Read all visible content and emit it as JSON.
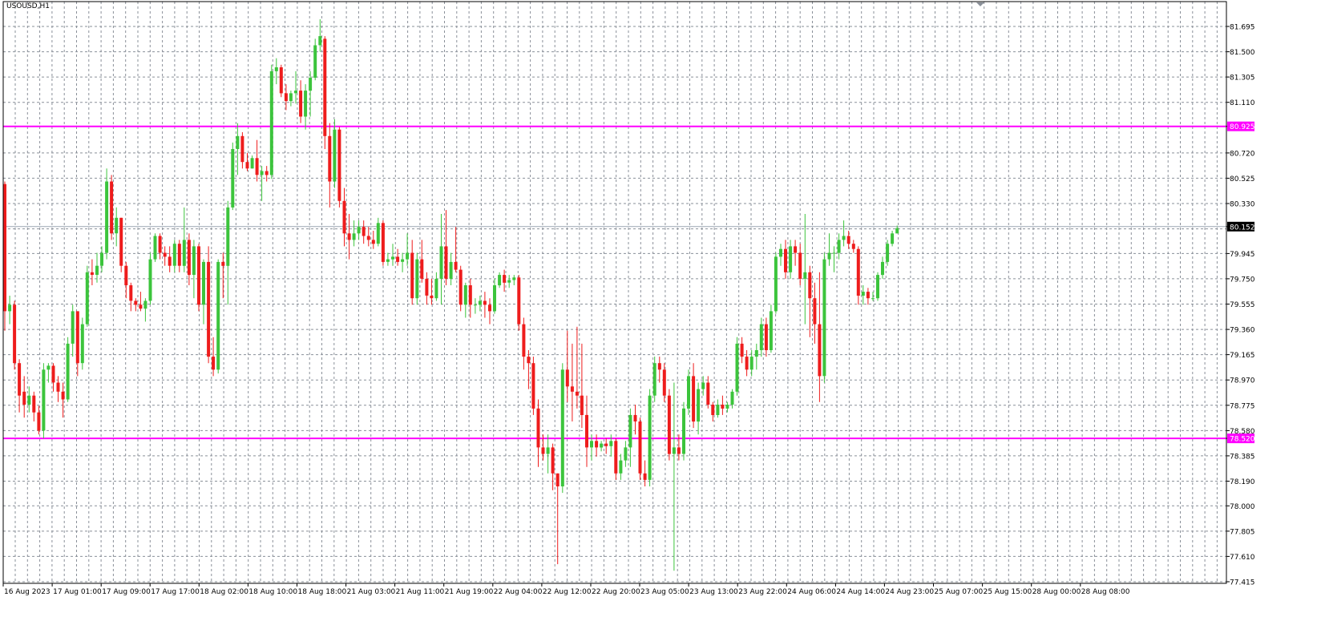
{
  "chart_data": {
    "type": "candlestick",
    "symbol": "USOUSD,H1",
    "ylim": [
      77.415,
      81.79
    ],
    "y_ticks": [
      "81.695",
      "81.500",
      "81.305",
      "81.110",
      "80.925",
      "80.720",
      "80.525",
      "80.330",
      "80.152",
      "79.945",
      "79.750",
      "79.555",
      "79.360",
      "79.165",
      "78.970",
      "78.775",
      "78.580",
      "78.520",
      "78.385",
      "78.190",
      "78.000",
      "77.805",
      "77.610",
      "77.415"
    ],
    "x_ticks": [
      "16 Aug 2023",
      "17 Aug 01:00",
      "17 Aug 09:00",
      "17 Aug 17:00",
      "18 Aug 02:00",
      "18 Aug 10:00",
      "18 Aug 18:00",
      "21 Aug 03:00",
      "21 Aug 11:00",
      "21 Aug 19:00",
      "22 Aug 04:00",
      "22 Aug 12:00",
      "22 Aug 20:00",
      "23 Aug 05:00",
      "23 Aug 13:00",
      "23 Aug 22:00",
      "24 Aug 06:00",
      "24 Aug 14:00",
      "24 Aug 23:00",
      "25 Aug 07:00",
      "25 Aug 15:00",
      "28 Aug 00:00",
      "28 Aug 08:00"
    ],
    "horizontal_lines": [
      {
        "value": 80.925,
        "label": "80.925",
        "color": "#ff00ff"
      },
      {
        "value": 78.52,
        "label": "78.520",
        "color": "#ff00ff"
      }
    ],
    "current_price": {
      "value": 80.152,
      "label": "80.152",
      "color": "#9aa6b2"
    },
    "bull_color": "#3cc43c",
    "bear_color": "#ee1c1c",
    "grid": true,
    "candles": [
      [
        80.48,
        80.5,
        79.35,
        79.5
      ],
      [
        79.5,
        79.62,
        79.4,
        79.55
      ],
      [
        79.55,
        79.58,
        79.05,
        79.1
      ],
      [
        79.1,
        79.13,
        78.72,
        78.85
      ],
      [
        78.88,
        79.0,
        78.68,
        78.78
      ],
      [
        78.78,
        78.92,
        78.72,
        78.85
      ],
      [
        78.85,
        78.88,
        78.65,
        78.72
      ],
      [
        78.72,
        78.77,
        78.55,
        78.58
      ],
      [
        78.58,
        79.1,
        78.52,
        79.05
      ],
      [
        79.05,
        79.1,
        78.95,
        79.08
      ],
      [
        79.08,
        79.1,
        78.88,
        78.95
      ],
      [
        78.95,
        79.0,
        78.8,
        78.88
      ],
      [
        78.88,
        78.95,
        78.68,
        78.82
      ],
      [
        78.82,
        79.3,
        78.8,
        79.25
      ],
      [
        79.25,
        79.55,
        79.15,
        79.5
      ],
      [
        79.5,
        79.5,
        79.0,
        79.1
      ],
      [
        79.1,
        79.45,
        79.05,
        79.4
      ],
      [
        79.4,
        79.85,
        79.38,
        79.8
      ],
      [
        79.8,
        79.9,
        79.7,
        79.78
      ],
      [
        79.78,
        79.95,
        79.72,
        79.85
      ],
      [
        79.85,
        80.0,
        79.8,
        79.95
      ],
      [
        79.95,
        80.6,
        79.9,
        80.5
      ],
      [
        80.5,
        80.55,
        80.05,
        80.1
      ],
      [
        80.1,
        80.3,
        80.0,
        80.22
      ],
      [
        80.22,
        80.22,
        79.8,
        79.85
      ],
      [
        79.85,
        79.88,
        79.6,
        79.7
      ],
      [
        79.7,
        79.72,
        79.5,
        79.58
      ],
      [
        79.58,
        79.6,
        79.5,
        79.55
      ],
      [
        79.55,
        79.65,
        79.5,
        79.52
      ],
      [
        79.52,
        79.6,
        79.42,
        79.58
      ],
      [
        79.58,
        79.95,
        79.55,
        79.9
      ],
      [
        79.9,
        80.1,
        79.88,
        80.08
      ],
      [
        80.08,
        80.1,
        79.9,
        79.95
      ],
      [
        79.95,
        80.0,
        79.85,
        79.92
      ],
      [
        79.92,
        80.0,
        79.8,
        79.85
      ],
      [
        79.85,
        80.05,
        79.8,
        80.02
      ],
      [
        80.02,
        80.05,
        79.8,
        79.85
      ],
      [
        79.85,
        80.3,
        79.8,
        80.05
      ],
      [
        80.05,
        80.1,
        79.7,
        79.78
      ],
      [
        79.78,
        80.05,
        79.6,
        80.0
      ],
      [
        80.0,
        80.02,
        79.5,
        79.55
      ],
      [
        79.55,
        79.9,
        79.4,
        79.88
      ],
      [
        79.88,
        80.0,
        79.1,
        79.15
      ],
      [
        79.15,
        79.3,
        79.0,
        79.05
      ],
      [
        79.05,
        79.9,
        79.02,
        79.88
      ],
      [
        79.88,
        79.95,
        79.6,
        79.85
      ],
      [
        79.85,
        80.35,
        79.55,
        80.3
      ],
      [
        80.3,
        80.8,
        80.28,
        80.75
      ],
      [
        80.75,
        80.95,
        80.55,
        80.85
      ],
      [
        80.85,
        80.88,
        80.6,
        80.65
      ],
      [
        80.65,
        80.72,
        80.58,
        80.6
      ],
      [
        80.6,
        80.7,
        80.6,
        80.68
      ],
      [
        80.68,
        80.82,
        80.5,
        80.55
      ],
      [
        80.55,
        80.62,
        80.35,
        80.58
      ],
      [
        80.58,
        80.62,
        80.5,
        80.55
      ],
      [
        80.55,
        81.4,
        80.52,
        81.35
      ],
      [
        81.35,
        81.45,
        81.25,
        81.38
      ],
      [
        81.38,
        81.4,
        81.15,
        81.18
      ],
      [
        81.18,
        81.25,
        81.05,
        81.12
      ],
      [
        81.12,
        81.2,
        81.08,
        81.18
      ],
      [
        81.18,
        81.35,
        81.1,
        81.2
      ],
      [
        81.2,
        81.28,
        80.95,
        81.0
      ],
      [
        81.0,
        81.25,
        80.9,
        81.2
      ],
      [
        81.2,
        81.35,
        81.0,
        81.3
      ],
      [
        81.3,
        81.6,
        81.28,
        81.55
      ],
      [
        81.55,
        81.75,
        81.5,
        81.62
      ],
      [
        81.6,
        81.62,
        80.75,
        80.85
      ],
      [
        80.85,
        80.95,
        80.3,
        80.5
      ],
      [
        80.5,
        80.98,
        80.45,
        80.9
      ],
      [
        80.9,
        80.92,
        80.3,
        80.35
      ],
      [
        80.35,
        80.45,
        80.0,
        80.1
      ],
      [
        80.1,
        80.25,
        79.9,
        80.05
      ],
      [
        80.05,
        80.2,
        80.0,
        80.1
      ],
      [
        80.1,
        80.2,
        80.05,
        80.15
      ],
      [
        80.15,
        80.2,
        80.02,
        80.08
      ],
      [
        80.08,
        80.15,
        80.0,
        80.05
      ],
      [
        80.05,
        80.12,
        79.98,
        80.02
      ],
      [
        80.02,
        80.22,
        80.0,
        80.18
      ],
      [
        80.18,
        80.2,
        79.85,
        79.88
      ],
      [
        79.88,
        79.95,
        79.85,
        79.9
      ],
      [
        79.9,
        80.02,
        79.85,
        79.92
      ],
      [
        79.92,
        79.98,
        79.85,
        79.88
      ],
      [
        79.88,
        79.95,
        79.8,
        79.9
      ],
      [
        79.9,
        80.1,
        79.85,
        79.95
      ],
      [
        79.95,
        80.05,
        79.55,
        79.6
      ],
      [
        79.6,
        79.95,
        79.55,
        79.9
      ],
      [
        79.9,
        80.05,
        79.72,
        79.75
      ],
      [
        79.75,
        79.8,
        79.55,
        79.62
      ],
      [
        79.62,
        79.75,
        79.55,
        79.6
      ],
      [
        79.6,
        79.8,
        79.58,
        79.75
      ],
      [
        79.75,
        80.25,
        79.55,
        80.0
      ],
      [
        80.0,
        80.28,
        79.7,
        79.75
      ],
      [
        79.75,
        79.95,
        79.7,
        79.88
      ],
      [
        79.88,
        80.15,
        79.8,
        79.82
      ],
      [
        79.82,
        79.85,
        79.5,
        79.55
      ],
      [
        79.55,
        79.72,
        79.45,
        79.7
      ],
      [
        79.7,
        79.75,
        79.45,
        79.55
      ],
      [
        79.55,
        79.6,
        79.48,
        79.55
      ],
      [
        79.55,
        79.62,
        79.5,
        79.58
      ],
      [
        79.58,
        79.65,
        79.45,
        79.55
      ],
      [
        79.55,
        79.6,
        79.4,
        79.5
      ],
      [
        79.5,
        79.75,
        79.48,
        79.7
      ],
      [
        79.7,
        79.8,
        79.68,
        79.78
      ],
      [
        79.78,
        79.82,
        79.65,
        79.72
      ],
      [
        79.72,
        79.78,
        79.68,
        79.74
      ],
      [
        79.74,
        79.78,
        79.7,
        79.76
      ],
      [
        79.76,
        79.78,
        79.35,
        79.4
      ],
      [
        79.4,
        79.45,
        79.05,
        79.15
      ],
      [
        79.15,
        79.2,
        78.9,
        79.1
      ],
      [
        79.1,
        79.15,
        78.7,
        78.75
      ],
      [
        78.75,
        78.82,
        78.3,
        78.45
      ],
      [
        78.45,
        78.55,
        78.35,
        78.4
      ],
      [
        78.4,
        78.55,
        78.25,
        78.45
      ],
      [
        78.45,
        78.48,
        78.12,
        78.25
      ],
      [
        78.25,
        78.25,
        77.55,
        78.15
      ],
      [
        78.15,
        79.1,
        78.1,
        79.05
      ],
      [
        79.05,
        79.35,
        78.8,
        78.92
      ],
      [
        78.92,
        79.25,
        78.65,
        78.88
      ],
      [
        78.88,
        79.38,
        78.75,
        78.85
      ],
      [
        78.85,
        79.25,
        78.6,
        78.7
      ],
      [
        78.7,
        78.85,
        78.3,
        78.45
      ],
      [
        78.45,
        78.55,
        78.35,
        78.5
      ],
      [
        78.5,
        78.55,
        78.38,
        78.45
      ],
      [
        78.45,
        78.5,
        78.42,
        78.48
      ],
      [
        78.48,
        78.52,
        78.4,
        78.46
      ],
      [
        78.46,
        78.55,
        78.38,
        78.5
      ],
      [
        78.5,
        78.52,
        78.2,
        78.25
      ],
      [
        78.25,
        78.4,
        78.2,
        78.35
      ],
      [
        78.35,
        78.5,
        78.3,
        78.45
      ],
      [
        78.45,
        78.75,
        78.3,
        78.7
      ],
      [
        78.7,
        78.78,
        78.55,
        78.65
      ],
      [
        78.65,
        78.68,
        78.2,
        78.25
      ],
      [
        78.25,
        78.35,
        78.15,
        78.2
      ],
      [
        78.2,
        78.9,
        78.15,
        78.85
      ],
      [
        78.85,
        79.15,
        78.8,
        79.1
      ],
      [
        79.1,
        79.15,
        78.95,
        79.05
      ],
      [
        79.05,
        79.1,
        78.8,
        78.85
      ],
      [
        78.85,
        78.9,
        78.35,
        78.4
      ],
      [
        78.4,
        78.95,
        77.5,
        78.45
      ],
      [
        78.45,
        78.55,
        78.35,
        78.4
      ],
      [
        78.4,
        78.8,
        78.35,
        78.75
      ],
      [
        78.75,
        79.05,
        78.7,
        79.0
      ],
      [
        79.0,
        79.1,
        78.6,
        78.65
      ],
      [
        78.65,
        78.95,
        78.55,
        78.9
      ],
      [
        78.9,
        79.0,
        78.85,
        78.95
      ],
      [
        78.95,
        79.0,
        78.75,
        78.78
      ],
      [
        78.78,
        78.8,
        78.65,
        78.7
      ],
      [
        78.7,
        78.82,
        78.68,
        78.78
      ],
      [
        78.78,
        78.85,
        78.7,
        78.75
      ],
      [
        78.75,
        78.8,
        78.72,
        78.78
      ],
      [
        78.78,
        78.9,
        78.75,
        78.88
      ],
      [
        78.88,
        79.3,
        78.85,
        79.25
      ],
      [
        79.25,
        79.3,
        79.1,
        79.15
      ],
      [
        79.15,
        79.2,
        79.0,
        79.05
      ],
      [
        79.05,
        79.2,
        79.0,
        79.15
      ],
      [
        79.15,
        79.25,
        79.05,
        79.2
      ],
      [
        79.2,
        79.45,
        79.15,
        79.4
      ],
      [
        79.4,
        79.45,
        79.15,
        79.2
      ],
      [
        79.2,
        79.55,
        79.18,
        79.5
      ],
      [
        79.5,
        79.95,
        79.48,
        79.92
      ],
      [
        79.92,
        80.02,
        79.85,
        79.98
      ],
      [
        79.98,
        80.05,
        79.75,
        79.8
      ],
      [
        79.8,
        80.05,
        79.75,
        80.0
      ],
      [
        80.0,
        80.05,
        79.85,
        79.95
      ],
      [
        79.95,
        80.02,
        79.7,
        79.75
      ],
      [
        79.75,
        80.25,
        79.4,
        79.8
      ],
      [
        79.8,
        79.85,
        79.3,
        79.6
      ],
      [
        79.6,
        79.72,
        79.25,
        79.4
      ],
      [
        79.4,
        79.8,
        78.8,
        79.0
      ],
      [
        79.0,
        79.95,
        78.95,
        79.9
      ],
      [
        79.9,
        80.1,
        79.85,
        79.95
      ],
      [
        79.95,
        80.0,
        79.8,
        79.95
      ],
      [
        79.95,
        80.1,
        79.9,
        80.05
      ],
      [
        80.05,
        80.2,
        80.0,
        80.08
      ],
      [
        80.08,
        80.12,
        79.98,
        80.02
      ],
      [
        80.02,
        80.05,
        79.95,
        79.98
      ],
      [
        79.98,
        80.0,
        79.55,
        79.62
      ],
      [
        79.62,
        79.7,
        79.55,
        79.65
      ],
      [
        79.65,
        79.68,
        79.55,
        79.6
      ],
      [
        79.6,
        79.65,
        79.58,
        79.6
      ],
      [
        79.6,
        79.8,
        79.58,
        79.78
      ],
      [
        79.78,
        79.92,
        79.75,
        79.88
      ],
      [
        79.88,
        80.05,
        79.85,
        80.02
      ],
      [
        80.02,
        80.12,
        80.0,
        80.1
      ],
      [
        80.1,
        80.16,
        80.1,
        80.14
      ]
    ]
  }
}
